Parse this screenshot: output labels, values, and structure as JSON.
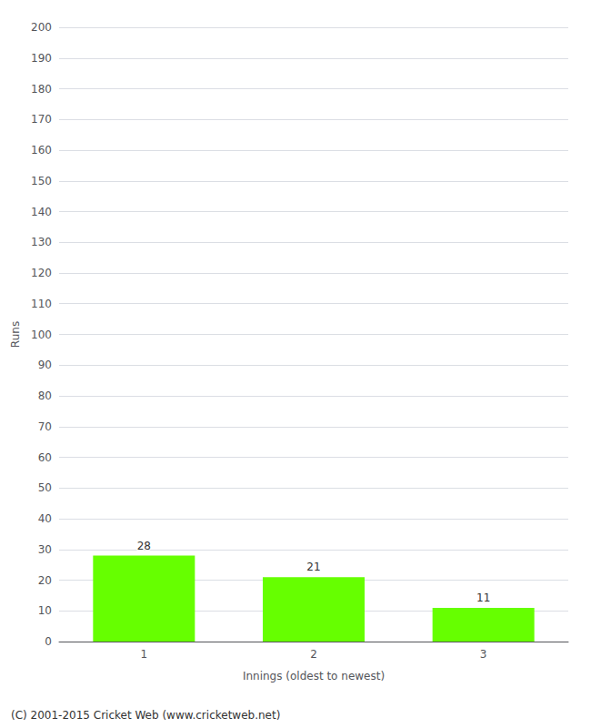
{
  "chart_data": {
    "type": "bar",
    "categories": [
      "1",
      "2",
      "3"
    ],
    "values": [
      28,
      21,
      11
    ],
    "color": "#66ff00",
    "ylabel": "Runs",
    "xlabel": "Innings (oldest to newest)",
    "annotations": [
      "(C) 2001-2015 Cricket Web (www.cricketweb.net)"
    ],
    "ylim": [
      0,
      200
    ],
    "yticks": [
      0,
      10,
      20,
      30,
      40,
      50,
      60,
      70,
      80,
      90,
      100,
      110,
      120,
      130,
      140,
      150,
      160,
      170,
      180,
      190,
      200
    ],
    "grid": true,
    "data_labels": true
  }
}
